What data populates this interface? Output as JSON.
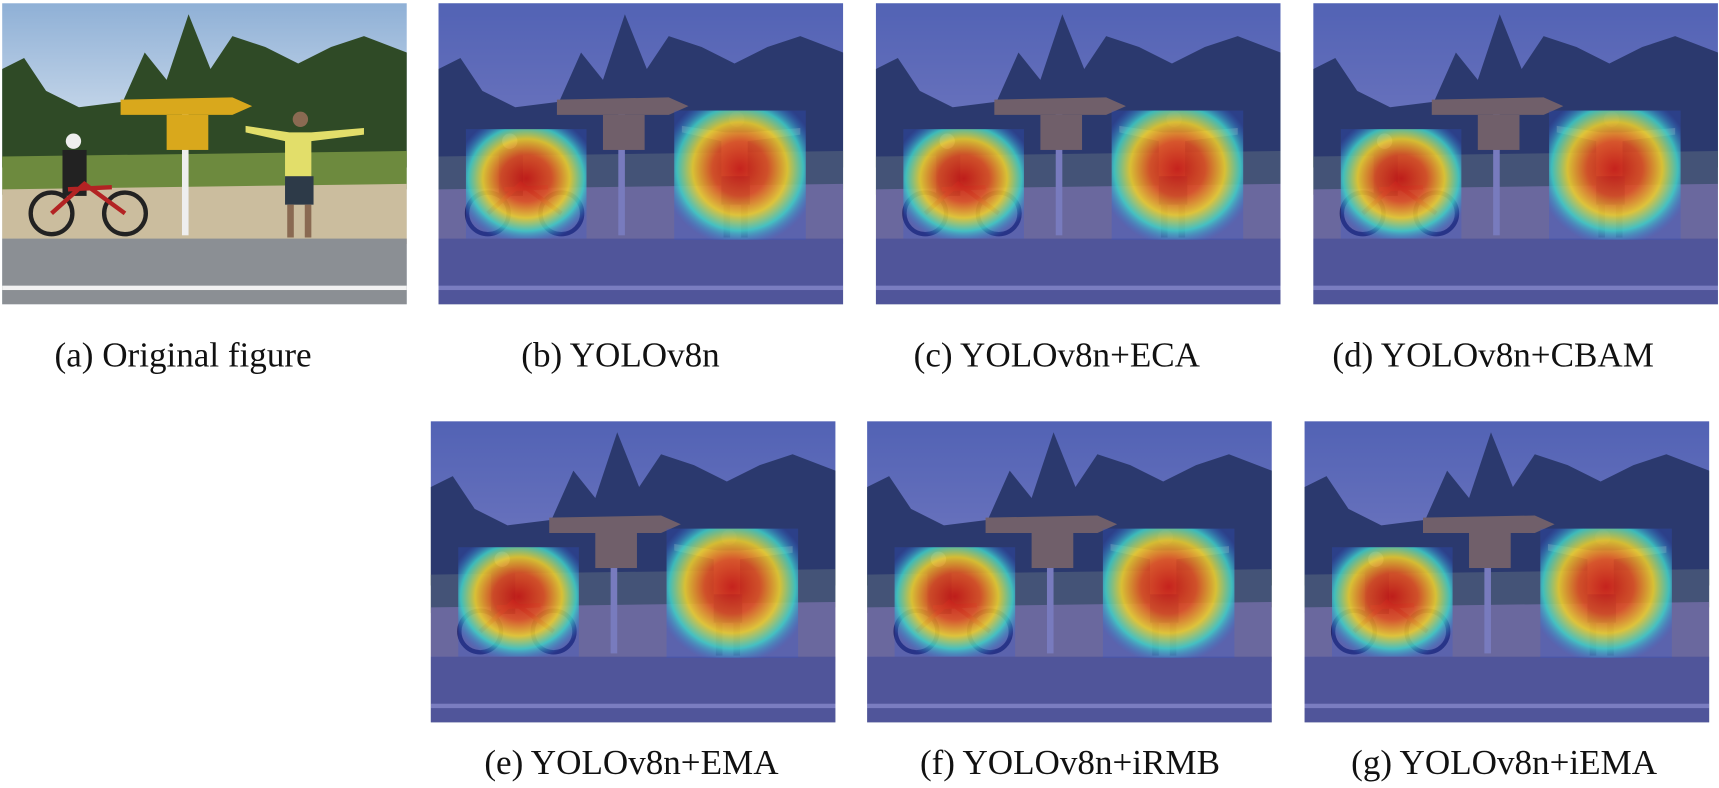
{
  "panels": [
    {
      "caption": "(a) Original figure"
    },
    {
      "caption": "(b) YOLOv8n"
    },
    {
      "caption": "(c) YOLOv8n+ECA"
    },
    {
      "caption": "(d) YOLOv8n+CBAM"
    },
    {
      "caption": "(e) YOLOv8n+EMA"
    },
    {
      "caption": "(f) YOLOv8n+iRMB"
    },
    {
      "caption": "(g) YOLOv8n+iEMA"
    }
  ]
}
